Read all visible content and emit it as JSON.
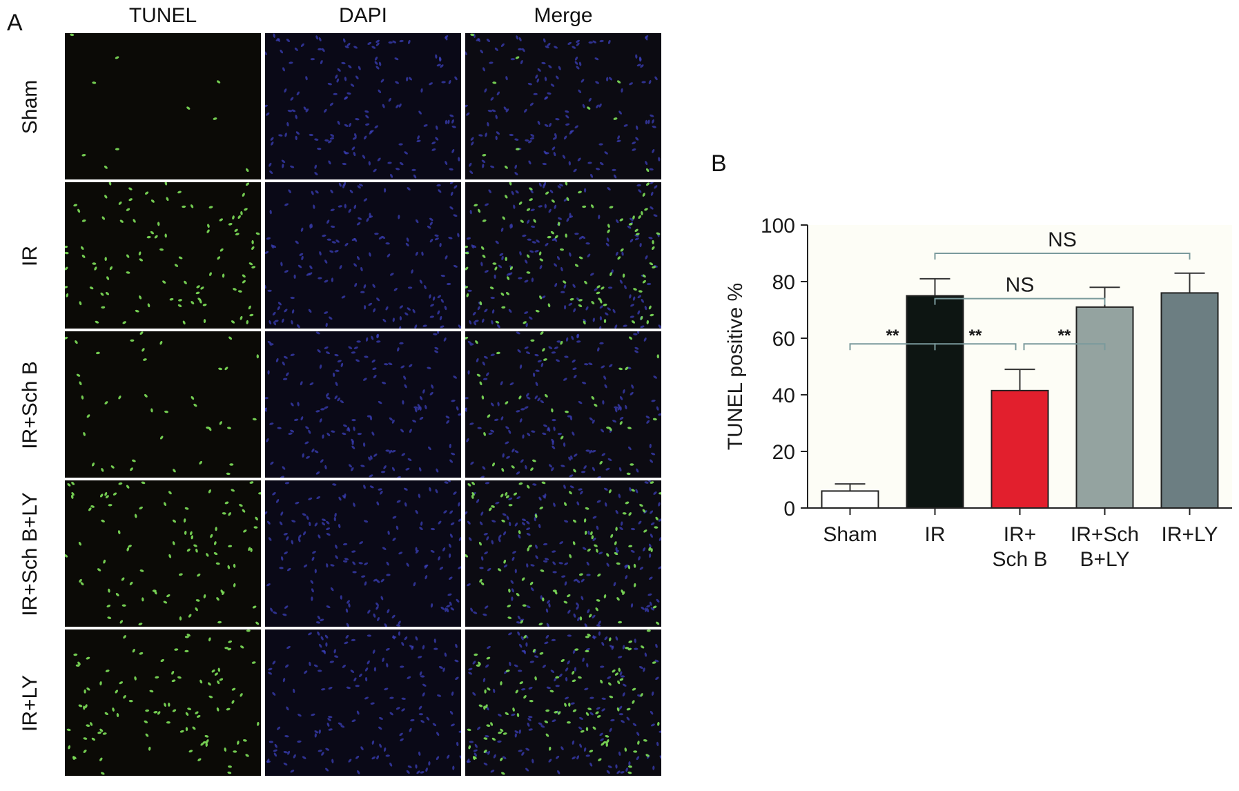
{
  "panel_a": {
    "letter": "A",
    "columns": [
      "TUNEL",
      "DAPI",
      "Merge"
    ],
    "rows": [
      {
        "label": "Sham",
        "tunel_density": 0.08
      },
      {
        "label": "IR",
        "tunel_density": 0.75
      },
      {
        "label": "IR+Sch B",
        "tunel_density": 0.3
      },
      {
        "label": "IR+Sch B+LY",
        "tunel_density": 0.7
      },
      {
        "label": "IR+LY",
        "tunel_density": 0.75
      }
    ]
  },
  "panel_b": {
    "letter": "B"
  },
  "chart_data": {
    "type": "bar",
    "categories": [
      [
        "Sham"
      ],
      [
        "IR"
      ],
      [
        "IR+",
        "Sch B"
      ],
      [
        "IR+Sch",
        "B+LY"
      ],
      [
        "IR+LY"
      ]
    ],
    "values": [
      6,
      75,
      41.5,
      71,
      76
    ],
    "errors": [
      2.5,
      6,
      7.5,
      7,
      7
    ],
    "colors": [
      "#ffffff",
      "#0d1512",
      "#e21f2d",
      "#94a3a0",
      "#6c7e82"
    ],
    "ylabel": "TUNEL positive %",
    "xlabel": "",
    "ylim": [
      0,
      100
    ],
    "yticks": [
      0,
      20,
      40,
      60,
      80,
      100
    ],
    "grid": false,
    "significance": [
      {
        "from": 0,
        "to": 1,
        "label": "**"
      },
      {
        "from": 1,
        "to": 2,
        "label": "**"
      },
      {
        "from": 2,
        "to": 3,
        "label": "**"
      },
      {
        "from": 1,
        "to": 3,
        "label": "NS"
      },
      {
        "from": 1,
        "to": 4,
        "label": "NS"
      }
    ]
  }
}
